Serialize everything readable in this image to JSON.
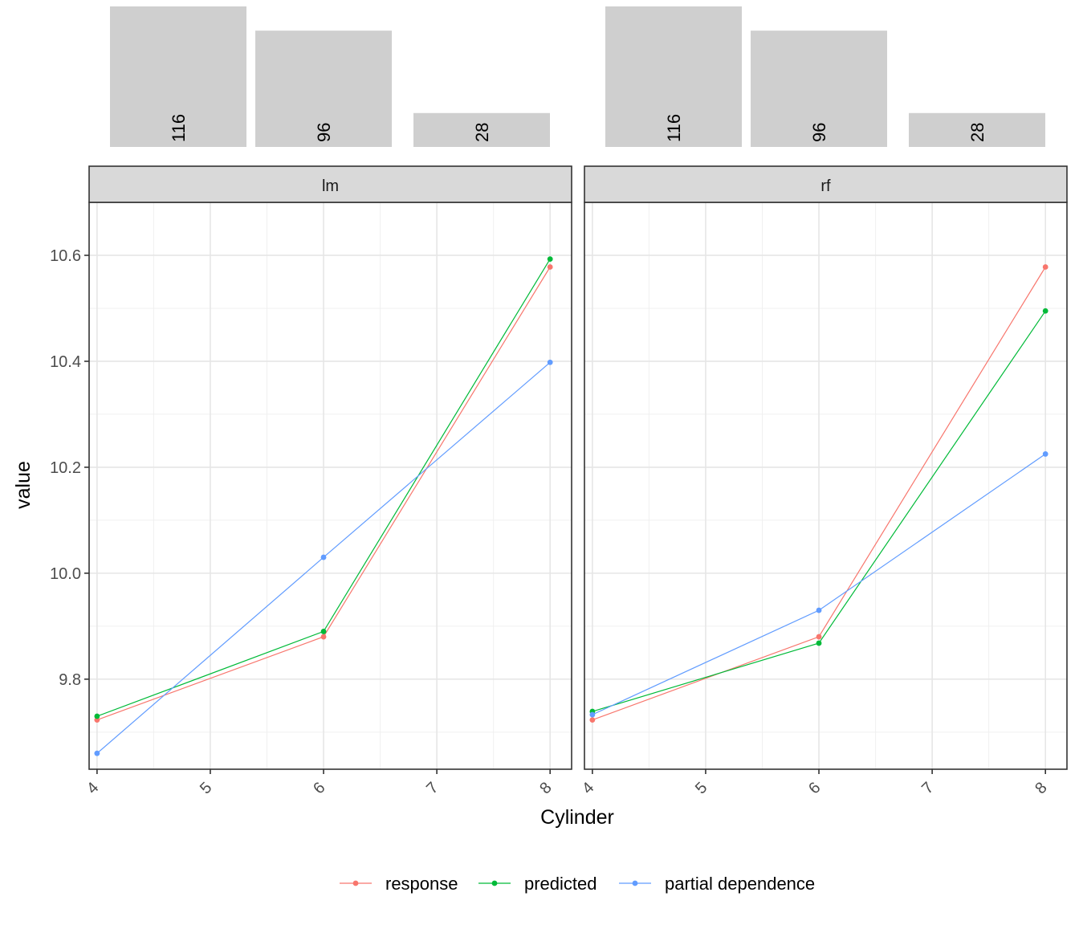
{
  "chart_data": {
    "type": "line",
    "xlabel": "Cylinder",
    "ylabel": "value",
    "x_ticks": [
      4,
      5,
      6,
      7,
      8
    ],
    "y_ticks": [
      9.8,
      10.0,
      10.2,
      10.4,
      10.6
    ],
    "y_tick_labels": [
      "9.8",
      "10.0",
      "10.2",
      "10.4",
      "10.6"
    ],
    "xlim": [
      3.93,
      8.19
    ],
    "ylim": [
      9.63,
      10.7
    ],
    "grid": true,
    "legend_position": "bottom",
    "series_colors": {
      "response": "#F8766D",
      "predicted": "#00BA38",
      "partial dependence": "#619CFF"
    },
    "counts": {
      "categories": [
        4,
        6,
        8
      ],
      "values": [
        116,
        96,
        28
      ],
      "color": "#cfcfcf"
    },
    "panels": [
      {
        "label": "lm",
        "x": [
          4,
          6,
          8
        ],
        "series": [
          {
            "name": "response",
            "values": [
              9.723,
              9.88,
              10.578
            ]
          },
          {
            "name": "predicted",
            "values": [
              9.73,
              9.89,
              10.593
            ]
          },
          {
            "name": "partial dependence",
            "values": [
              9.66,
              10.03,
              10.398
            ]
          }
        ]
      },
      {
        "label": "rf",
        "x": [
          4,
          6,
          8
        ],
        "series": [
          {
            "name": "response",
            "values": [
              9.723,
              9.88,
              10.578
            ]
          },
          {
            "name": "predicted",
            "values": [
              9.739,
              9.868,
              10.495
            ]
          },
          {
            "name": "partial dependence",
            "values": [
              9.733,
              9.93,
              10.225
            ]
          }
        ]
      }
    ]
  }
}
